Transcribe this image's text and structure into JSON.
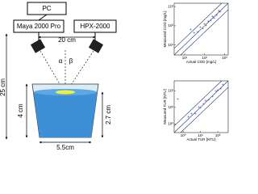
{
  "diagram": {
    "pc": "PC",
    "spectrometer": "Maya 2000 Pro",
    "lamp": "HPX-2000",
    "distance": "20 cm",
    "alpha": "α",
    "beta": "β",
    "height": "25 cm",
    "depth": "4 cm",
    "water_level": "2.7 cm",
    "diameter": "5.5cm"
  },
  "chart_data": [
    {
      "type": "scatter",
      "xlabel": "Actual COD [mg/L]",
      "ylabel": "Measured COD [mg/L]",
      "log": true,
      "color": "#3355cc",
      "x": [
        20,
        30,
        45,
        60,
        80,
        100,
        120,
        150,
        200,
        250,
        300,
        400,
        500,
        600
      ],
      "y": [
        60,
        40,
        45,
        80,
        70,
        120,
        100,
        170,
        180,
        300,
        250,
        350,
        600,
        500
      ],
      "xlim": [
        3,
        1500
      ],
      "ylim": [
        3,
        1500
      ],
      "xticks": [
        {
          "value": 10,
          "label": "10¹"
        },
        {
          "value": 100,
          "label": "10²"
        },
        {
          "value": 1000,
          "label": "10³"
        }
      ],
      "yticks": [
        {
          "value": 10,
          "label": "10¹"
        },
        {
          "value": 100,
          "label": "10²"
        },
        {
          "value": 1000,
          "label": "10³"
        }
      ]
    },
    {
      "type": "scatter",
      "xlabel": "Actual TUR [NTU]",
      "ylabel": "Measured TUR [NTU]",
      "log": true,
      "color": "#3355cc",
      "x": [
        0.5,
        2,
        3,
        5,
        8,
        10,
        15,
        20,
        30,
        50,
        80,
        100,
        150,
        200
      ],
      "y": [
        30,
        2.5,
        4,
        4,
        10,
        9,
        15,
        25,
        28,
        45,
        90,
        110,
        130,
        220
      ],
      "xlim": [
        0.3,
        400
      ],
      "ylim": [
        0.3,
        400
      ],
      "xticks": [
        {
          "value": 1,
          "label": "10⁰"
        },
        {
          "value": 10,
          "label": "10¹"
        },
        {
          "value": 100,
          "label": "10²"
        }
      ],
      "yticks": [
        {
          "value": 1,
          "label": "10⁰"
        },
        {
          "value": 10,
          "label": "10¹"
        },
        {
          "value": 100,
          "label": "10²"
        }
      ]
    }
  ]
}
